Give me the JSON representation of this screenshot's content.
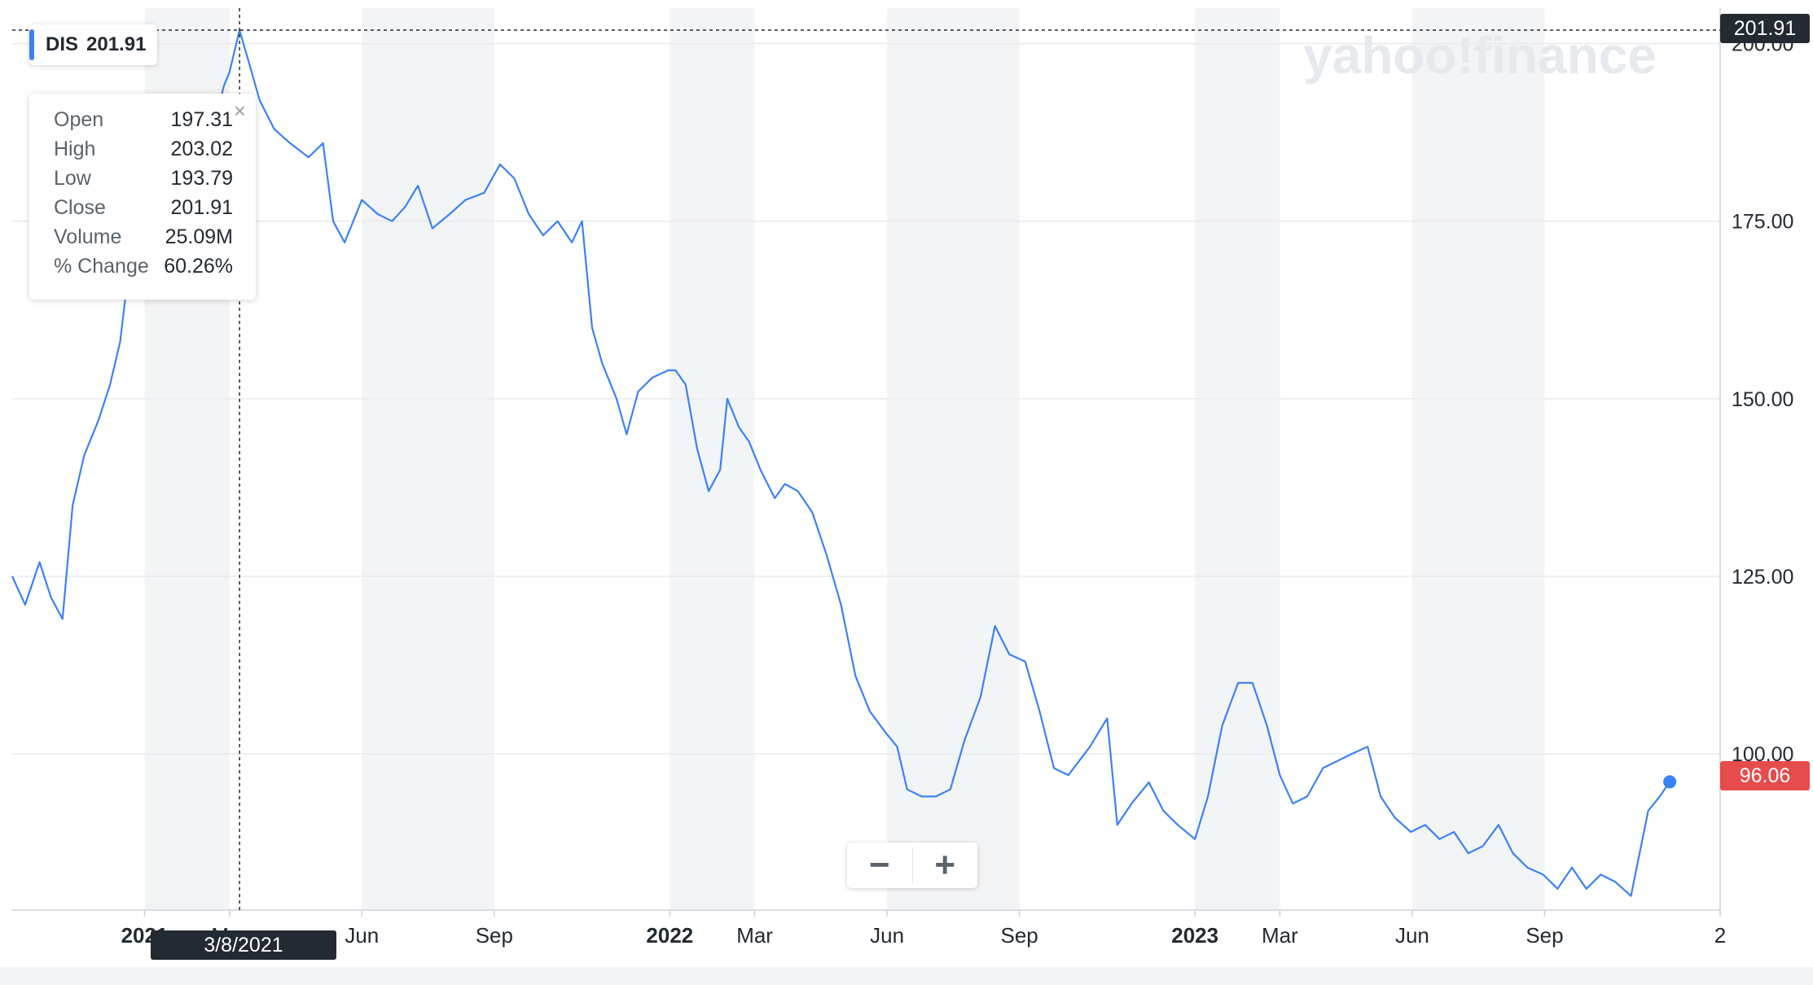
{
  "legend": {
    "ticker": "DIS",
    "price": "201.91"
  },
  "tooltip": {
    "rows": [
      {
        "label": "Open",
        "value": "197.31"
      },
      {
        "label": "High",
        "value": "203.02"
      },
      {
        "label": "Low",
        "value": "193.79"
      },
      {
        "label": "Close",
        "value": "201.91"
      },
      {
        "label": "Volume",
        "value": "25.09M"
      },
      {
        "label": "% Change",
        "value": "60.26%"
      }
    ],
    "close_symbol": "×"
  },
  "crosshair": {
    "date_label": "3/8/2021",
    "price_label": "201.91"
  },
  "current_price_label": "96.06",
  "watermark": "yahoo!finance",
  "zoom": {
    "minus": "−",
    "plus": "+"
  },
  "colors": {
    "line": "#3b82f6",
    "crosshair_badge": "#232a31",
    "current_badge": "#e64c4c"
  },
  "chart_data": {
    "type": "line",
    "title": "",
    "xlabel": "",
    "ylabel": "",
    "ylim": [
      78,
      205
    ],
    "y_ticks": [
      "100.00",
      "125.00",
      "150.00",
      "175.00",
      "200.00"
    ],
    "x_ticks": [
      {
        "label": "2021",
        "date": "2021-01-01",
        "bold": true
      },
      {
        "label": "Mar",
        "date": "2021-03-01",
        "bold": false
      },
      {
        "label": "Jun",
        "date": "2021-06-01",
        "bold": false
      },
      {
        "label": "Sep",
        "date": "2021-09-01",
        "bold": false
      },
      {
        "label": "2022",
        "date": "2022-01-01",
        "bold": true
      },
      {
        "label": "Mar",
        "date": "2022-03-01",
        "bold": false
      },
      {
        "label": "Jun",
        "date": "2022-06-01",
        "bold": false
      },
      {
        "label": "Sep",
        "date": "2022-09-01",
        "bold": false
      },
      {
        "label": "2023",
        "date": "2023-01-01",
        "bold": true
      },
      {
        "label": "Mar",
        "date": "2023-03-01",
        "bold": false
      },
      {
        "label": "Jun",
        "date": "2023-06-01",
        "bold": false
      },
      {
        "label": "Sep",
        "date": "2023-09-01",
        "bold": false
      },
      {
        "label": "2",
        "date": "2024-01-01",
        "bold": false
      }
    ],
    "series": [
      {
        "points": [
          [
            "2020-10-01",
            125
          ],
          [
            "2020-10-10",
            121
          ],
          [
            "2020-10-20",
            127
          ],
          [
            "2020-10-28",
            122
          ],
          [
            "2020-11-05",
            119
          ],
          [
            "2020-11-12",
            135
          ],
          [
            "2020-11-20",
            142
          ],
          [
            "2020-11-30",
            147
          ],
          [
            "2020-12-08",
            152
          ],
          [
            "2020-12-15",
            158
          ],
          [
            "2020-12-22",
            170
          ],
          [
            "2020-12-31",
            178
          ],
          [
            "2021-01-08",
            180
          ],
          [
            "2021-01-15",
            177
          ],
          [
            "2021-01-25",
            170
          ],
          [
            "2021-02-01",
            178
          ],
          [
            "2021-02-10",
            185
          ],
          [
            "2021-02-18",
            188
          ],
          [
            "2021-02-25",
            194
          ],
          [
            "2021-03-01",
            196
          ],
          [
            "2021-03-08",
            201.91
          ],
          [
            "2021-03-15",
            197
          ],
          [
            "2021-03-22",
            192
          ],
          [
            "2021-04-01",
            188
          ],
          [
            "2021-04-12",
            186
          ],
          [
            "2021-04-25",
            184
          ],
          [
            "2021-05-05",
            186
          ],
          [
            "2021-05-12",
            175
          ],
          [
            "2021-05-20",
            172
          ],
          [
            "2021-06-01",
            178
          ],
          [
            "2021-06-12",
            176
          ],
          [
            "2021-06-22",
            175
          ],
          [
            "2021-07-01",
            177
          ],
          [
            "2021-07-10",
            180
          ],
          [
            "2021-07-20",
            174
          ],
          [
            "2021-08-01",
            176
          ],
          [
            "2021-08-12",
            178
          ],
          [
            "2021-08-25",
            179
          ],
          [
            "2021-09-05",
            183
          ],
          [
            "2021-09-15",
            181
          ],
          [
            "2021-09-25",
            176
          ],
          [
            "2021-10-05",
            173
          ],
          [
            "2021-10-15",
            175
          ],
          [
            "2021-10-25",
            172
          ],
          [
            "2021-11-01",
            175
          ],
          [
            "2021-11-08",
            160
          ],
          [
            "2021-11-15",
            155
          ],
          [
            "2021-11-25",
            150
          ],
          [
            "2021-12-02",
            145
          ],
          [
            "2021-12-10",
            151
          ],
          [
            "2021-12-20",
            153
          ],
          [
            "2021-12-31",
            154
          ],
          [
            "2022-01-05",
            154
          ],
          [
            "2022-01-12",
            152
          ],
          [
            "2022-01-20",
            143
          ],
          [
            "2022-01-28",
            137
          ],
          [
            "2022-02-05",
            140
          ],
          [
            "2022-02-10",
            150
          ],
          [
            "2022-02-18",
            146
          ],
          [
            "2022-02-25",
            144
          ],
          [
            "2022-03-05",
            140
          ],
          [
            "2022-03-15",
            136
          ],
          [
            "2022-03-22",
            138
          ],
          [
            "2022-03-31",
            137
          ],
          [
            "2022-04-10",
            134
          ],
          [
            "2022-04-20",
            128
          ],
          [
            "2022-04-30",
            121
          ],
          [
            "2022-05-10",
            111
          ],
          [
            "2022-05-20",
            106
          ],
          [
            "2022-05-31",
            103
          ],
          [
            "2022-06-08",
            101
          ],
          [
            "2022-06-15",
            95
          ],
          [
            "2022-06-25",
            94
          ],
          [
            "2022-07-05",
            94
          ],
          [
            "2022-07-15",
            95
          ],
          [
            "2022-07-25",
            102
          ],
          [
            "2022-08-05",
            108
          ],
          [
            "2022-08-15",
            118
          ],
          [
            "2022-08-25",
            114
          ],
          [
            "2022-09-05",
            113
          ],
          [
            "2022-09-15",
            106
          ],
          [
            "2022-09-25",
            98
          ],
          [
            "2022-10-05",
            97
          ],
          [
            "2022-10-20",
            101
          ],
          [
            "2022-11-01",
            105
          ],
          [
            "2022-11-08",
            90
          ],
          [
            "2022-11-18",
            93
          ],
          [
            "2022-11-30",
            96
          ],
          [
            "2022-12-10",
            92
          ],
          [
            "2022-12-20",
            90
          ],
          [
            "2023-01-01",
            88
          ],
          [
            "2023-01-10",
            94
          ],
          [
            "2023-01-20",
            104
          ],
          [
            "2023-01-31",
            110
          ],
          [
            "2023-02-10",
            110
          ],
          [
            "2023-02-20",
            104
          ],
          [
            "2023-03-01",
            97
          ],
          [
            "2023-03-10",
            93
          ],
          [
            "2023-03-20",
            94
          ],
          [
            "2023-03-31",
            98
          ],
          [
            "2023-04-10",
            99
          ],
          [
            "2023-04-20",
            100
          ],
          [
            "2023-05-01",
            101
          ],
          [
            "2023-05-10",
            94
          ],
          [
            "2023-05-20",
            91
          ],
          [
            "2023-05-31",
            89
          ],
          [
            "2023-06-10",
            90
          ],
          [
            "2023-06-20",
            88
          ],
          [
            "2023-06-30",
            89
          ],
          [
            "2023-07-10",
            86
          ],
          [
            "2023-07-20",
            87
          ],
          [
            "2023-07-31",
            90
          ],
          [
            "2023-08-10",
            86
          ],
          [
            "2023-08-20",
            84
          ],
          [
            "2023-08-31",
            83
          ],
          [
            "2023-09-10",
            81
          ],
          [
            "2023-09-20",
            84
          ],
          [
            "2023-09-30",
            81
          ],
          [
            "2023-10-10",
            83
          ],
          [
            "2023-10-20",
            82
          ],
          [
            "2023-10-31",
            80
          ],
          [
            "2023-11-05",
            85
          ],
          [
            "2023-11-12",
            92
          ],
          [
            "2023-11-20",
            94
          ],
          [
            "2023-11-27",
            96.06
          ]
        ]
      }
    ],
    "shaded_periods": [
      [
        "2021-01-01",
        "2021-03-01"
      ],
      [
        "2021-06-01",
        "2021-09-01"
      ],
      [
        "2022-01-01",
        "2022-03-01"
      ],
      [
        "2022-06-01",
        "2022-09-01"
      ],
      [
        "2023-01-01",
        "2023-03-01"
      ],
      [
        "2023-06-01",
        "2023-09-01"
      ]
    ],
    "crosshair_date": "2021-03-08",
    "grid": true,
    "legend": "top-left"
  }
}
